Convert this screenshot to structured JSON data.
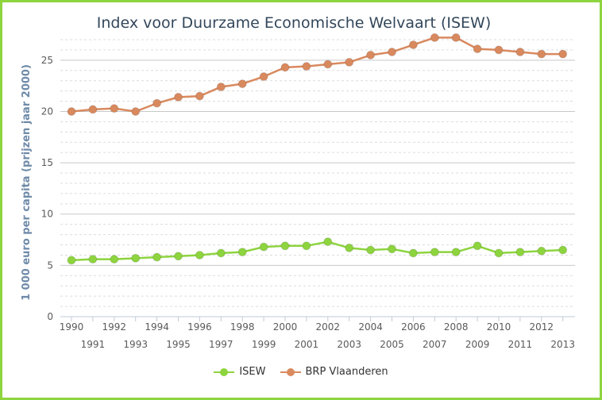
{
  "chart_data": {
    "type": "line",
    "title": "Index voor Duurzame Economische Welvaart (ISEW)",
    "ylabel": "1 000 euro per capita (prijzen jaar 2000)",
    "xlabel": "",
    "ylim": [
      0,
      27
    ],
    "yticks": [
      0,
      5,
      10,
      15,
      20,
      25
    ],
    "x": [
      1990,
      1991,
      1992,
      1993,
      1994,
      1995,
      1996,
      1997,
      1998,
      1999,
      2000,
      2001,
      2002,
      2003,
      2004,
      2005,
      2006,
      2007,
      2008,
      2009,
      2010,
      2011,
      2012,
      2013
    ],
    "series": [
      {
        "name": "ISEW",
        "color": "#8dd43f",
        "values": [
          5.5,
          5.6,
          5.6,
          5.7,
          5.8,
          5.9,
          6.0,
          6.2,
          6.3,
          6.8,
          6.9,
          6.9,
          7.3,
          6.7,
          6.5,
          6.6,
          6.2,
          6.3,
          6.3,
          6.9,
          6.2,
          6.3,
          6.4,
          6.5
        ]
      },
      {
        "name": "BRP Vlaanderen",
        "color": "#d9895e",
        "values": [
          20.0,
          20.2,
          20.3,
          20.0,
          20.8,
          21.4,
          21.5,
          22.4,
          22.7,
          23.4,
          24.3,
          24.4,
          24.6,
          24.8,
          25.5,
          25.8,
          26.5,
          27.2,
          27.2,
          26.1,
          26.0,
          25.8,
          25.6,
          25.6
        ]
      }
    ],
    "legend": "bottom-center",
    "grid": true
  }
}
